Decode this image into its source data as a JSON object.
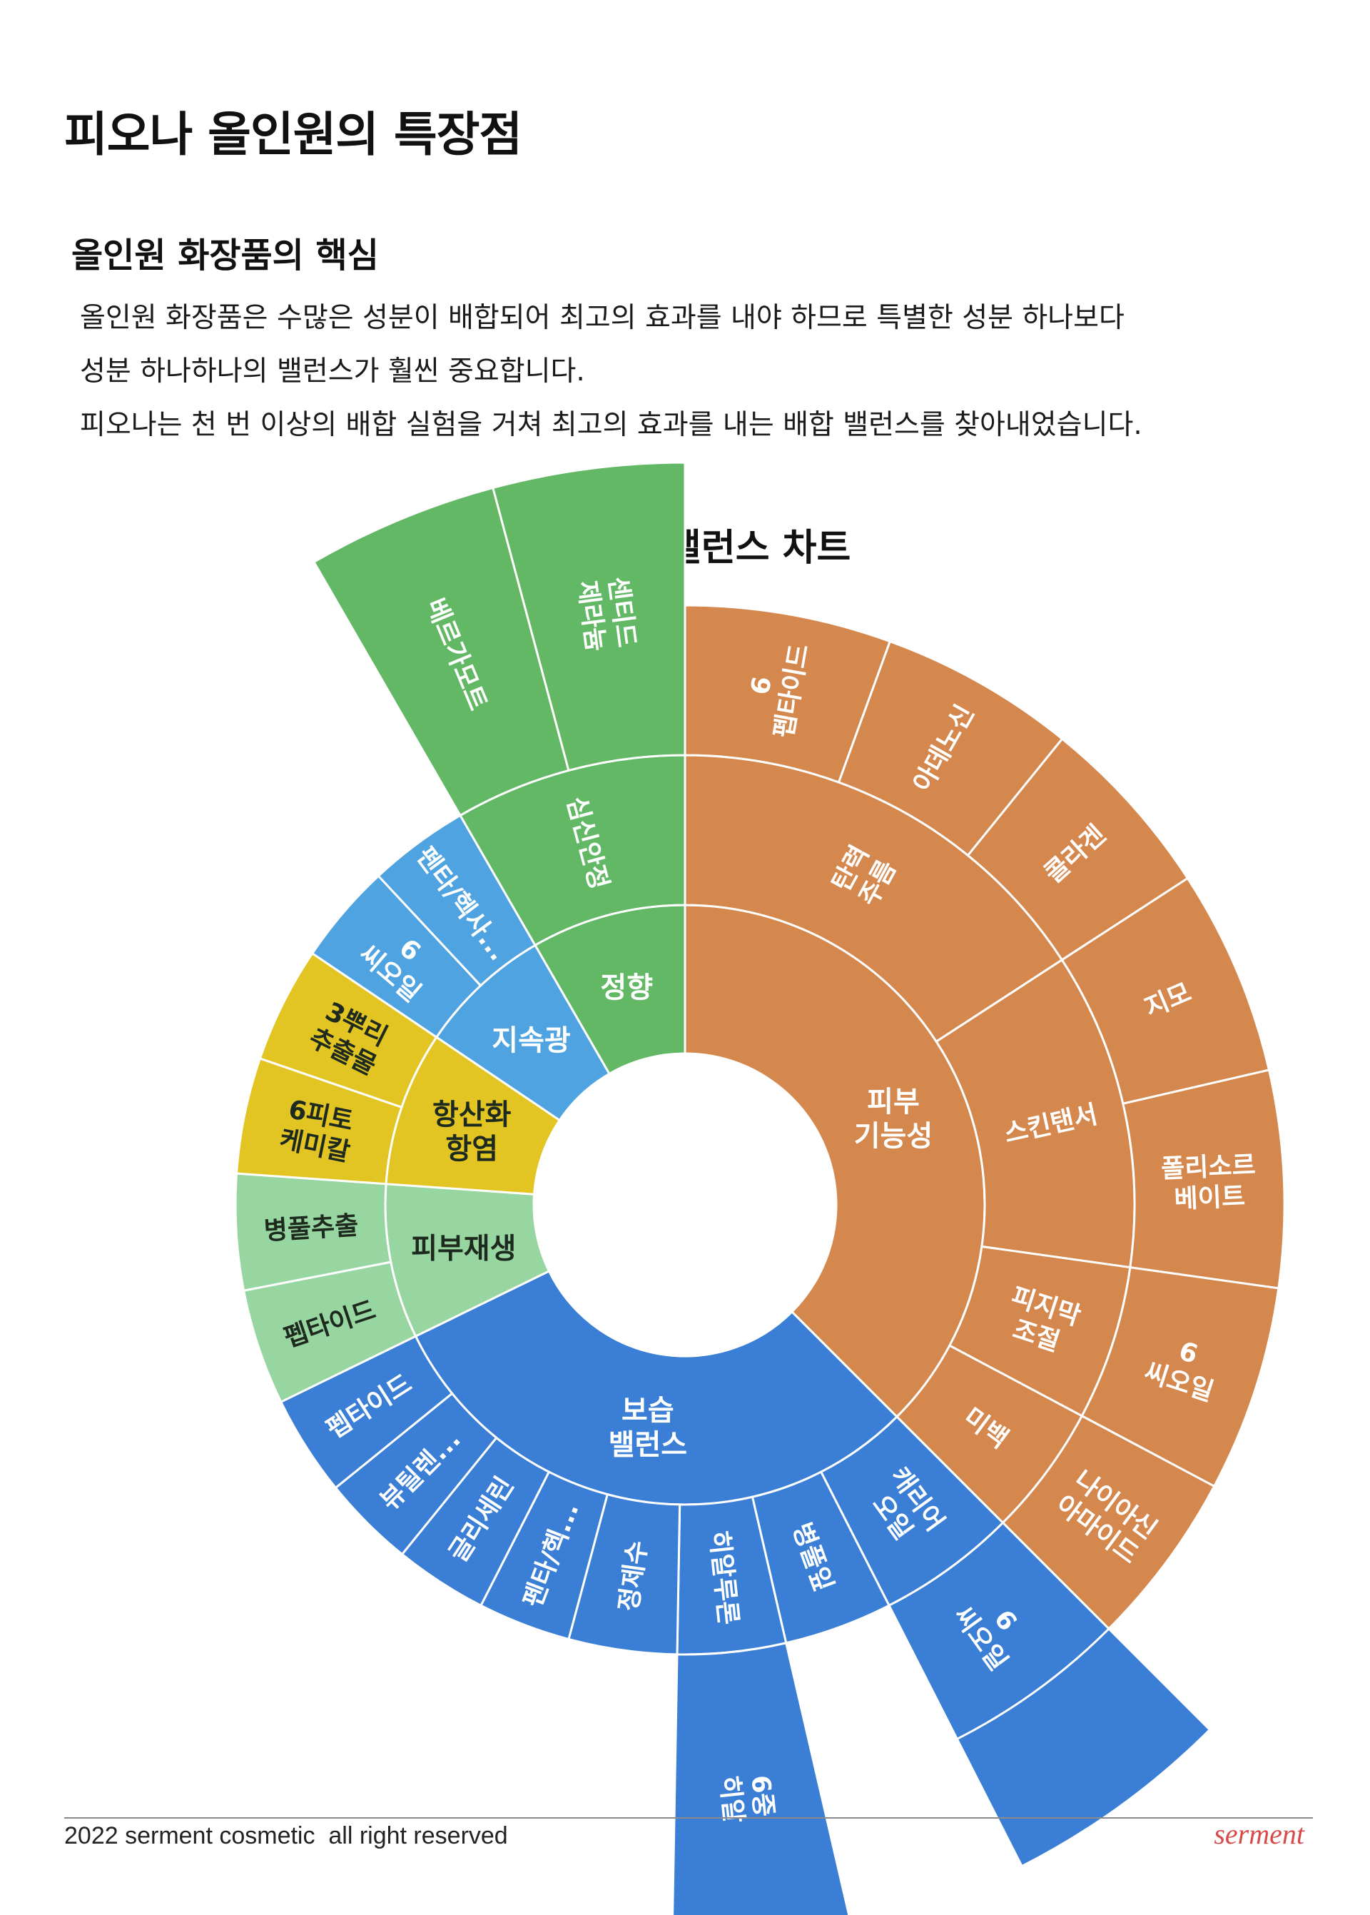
{
  "page": {
    "title": "피오나 올인원의 특장점",
    "section_title": "올인원 화장품의 핵심",
    "paragraph_lines": [
      "올인원 화장품은 수많은 성분이 배합되어 최고의 효과를 내야 하므로 특별한 성분 하나보다",
      "성분 하나하나의 밸런스가 훨씬 중요합니다.",
      "피오나는 천 번 이상의 배합 실험을 거쳐 최고의 효과를 내는 배합 밸런스를 찾아내었습니다."
    ]
  },
  "footer": {
    "copyright": "2022 serment cosmetic  all right reserved",
    "logo": "serment"
  },
  "chart_data": {
    "type": "sunburst",
    "title": "피오나 성분 밸런스 차트",
    "unit": "degrees of the full circle",
    "hierarchy": [
      {
        "name": "피부 기능성",
        "color": "#d4884e",
        "angle": 135,
        "children": [
          {
            "name": "탄력 주름",
            "angle": 57,
            "children": [
              {
                "name": "6 펩타이드",
                "angle": 20
              },
              {
                "name": "아데노신",
                "angle": 19
              },
              {
                "name": "콜라겐",
                "angle": 18
              }
            ]
          },
          {
            "name": "스킨탠서",
            "angle": 41,
            "children": [
              {
                "name": "지모",
                "angle": 20
              },
              {
                "name": "폴리소르베이트",
                "angle": 21
              }
            ]
          },
          {
            "name": "피지막 조절",
            "angle": 20,
            "children": [
              {
                "name": "6 씨오일",
                "angle": 20
              }
            ]
          },
          {
            "name": "미백",
            "angle": 17,
            "children": [
              {
                "name": "나이아신 아마이드",
                "angle": 17
              }
            ]
          }
        ]
      },
      {
        "name": "보습 밸런스",
        "color": "#3a7fd5",
        "angle": 109,
        "children": [
          {
            "name": "캐리어 오일",
            "angle": 18,
            "children": [
              {
                "name": "6 씨오일",
                "angle": 18
              }
            ]
          },
          {
            "name": "병풀잎",
            "angle": 14
          },
          {
            "name": "히알루론",
            "angle": 14,
            "children": [
              {
                "name": "6중 히알",
                "angle": 14
              }
            ]
          },
          {
            "name": "정제수",
            "angle": 14
          },
          {
            "name": "펜타/헥...",
            "angle": 12
          },
          {
            "name": "글리세린",
            "angle": 12
          },
          {
            "name": "뷰틸렌...",
            "angle": 12
          },
          {
            "name": "펩타이드",
            "angle": 13
          }
        ]
      },
      {
        "name": "피부재생",
        "color": "#97d5a1",
        "angle": 30,
        "children": [
          {
            "name": "펩타이드",
            "angle": 15
          },
          {
            "name": "병풀추출",
            "angle": 15
          }
        ]
      },
      {
        "name": "항산화 항염",
        "color": "#e2c422",
        "angle": 30,
        "children": [
          {
            "name": "6피토 케미칼",
            "angle": 15
          },
          {
            "name": "3뿌리 추출물",
            "angle": 15
          }
        ]
      },
      {
        "name": "지속광",
        "color": "#4fa3e0",
        "angle": 26,
        "children": [
          {
            "name": "6 씨오일",
            "angle": 13
          },
          {
            "name": "펜타/헥사...",
            "angle": 13
          }
        ]
      },
      {
        "name": "정향",
        "color": "#62b865",
        "angle": 30,
        "children": [
          {
            "name": "심신안정",
            "angle": 30,
            "children": [
              {
                "name": "베르가모트",
                "angle": 15
              },
              {
                "name": "센티드 제라늄",
                "angle": 15
              }
            ]
          }
        ]
      }
    ]
  }
}
